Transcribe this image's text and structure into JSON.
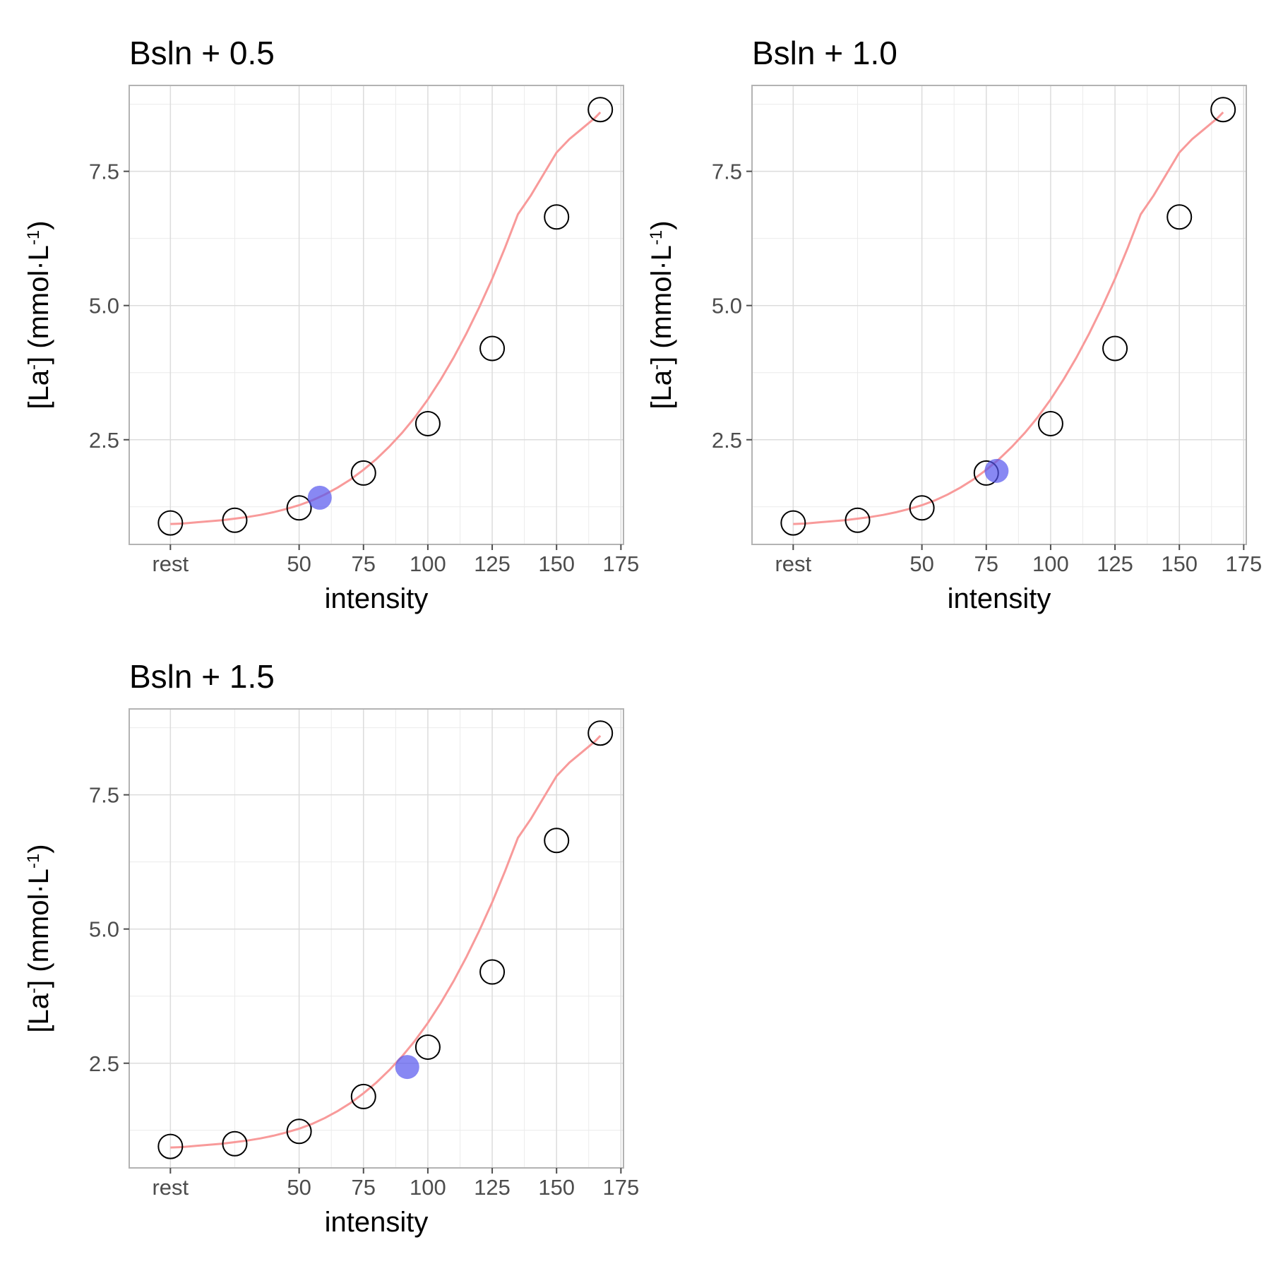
{
  "chart_data": [
    {
      "type": "scatter",
      "title": "Bsln + 0.5",
      "xlabel": "intensity",
      "ylabel": {
        "pre": "[La",
        "sup1": "-",
        "mid": "] (mmol·L",
        "sup2": "-1",
        "post": ")"
      },
      "x_ticks": [
        "rest",
        "50",
        "75",
        "100",
        "125",
        "150",
        "175"
      ],
      "x_tick_values": [
        0,
        50,
        75,
        100,
        125,
        150,
        175
      ],
      "y_ticks": [
        "2.5",
        "5.0",
        "7.5"
      ],
      "y_tick_values": [
        2.5,
        5.0,
        7.5
      ],
      "xlim": [
        -16,
        176
      ],
      "ylim": [
        0.55,
        9.1
      ],
      "grid": true,
      "points": {
        "x": [
          0,
          25,
          50,
          75,
          100,
          125,
          150,
          167
        ],
        "y": [
          0.95,
          1.0,
          1.23,
          1.88,
          2.8,
          4.2,
          6.65,
          8.65
        ]
      },
      "curve_color": "#f89a9a",
      "curve_x": [
        0,
        5,
        10,
        15,
        20,
        25,
        30,
        35,
        40,
        45,
        50,
        55,
        60,
        65,
        70,
        75,
        80,
        85,
        90,
        95,
        100,
        105,
        110,
        115,
        120,
        125,
        130,
        135,
        140,
        145,
        150,
        155,
        160,
        165,
        167
      ],
      "curve_y": [
        0.93,
        0.94,
        0.96,
        0.98,
        1.0,
        1.03,
        1.06,
        1.1,
        1.15,
        1.21,
        1.28,
        1.37,
        1.48,
        1.61,
        1.76,
        1.94,
        2.14,
        2.37,
        2.63,
        2.92,
        3.25,
        3.62,
        4.03,
        4.48,
        4.97,
        5.5,
        6.08,
        6.7,
        7.05,
        7.45,
        7.85,
        8.1,
        8.3,
        8.5,
        8.6
      ],
      "threshold": {
        "x": 58,
        "y": 1.42,
        "color": "#5555ee"
      }
    },
    {
      "type": "scatter",
      "title": "Bsln + 1.0",
      "xlabel": "intensity",
      "ylabel": {
        "pre": "[La",
        "sup1": "-",
        "mid": "] (mmol·L",
        "sup2": "-1",
        "post": ")"
      },
      "x_ticks": [
        "rest",
        "50",
        "75",
        "100",
        "125",
        "150",
        "175"
      ],
      "x_tick_values": [
        0,
        50,
        75,
        100,
        125,
        150,
        175
      ],
      "y_ticks": [
        "2.5",
        "5.0",
        "7.5"
      ],
      "y_tick_values": [
        2.5,
        5.0,
        7.5
      ],
      "xlim": [
        -16,
        176
      ],
      "ylim": [
        0.55,
        9.1
      ],
      "grid": true,
      "points": {
        "x": [
          0,
          25,
          50,
          75,
          100,
          125,
          150,
          167
        ],
        "y": [
          0.95,
          1.0,
          1.23,
          1.88,
          2.8,
          4.2,
          6.65,
          8.65
        ]
      },
      "curve_color": "#f89a9a",
      "curve_x": [
        0,
        5,
        10,
        15,
        20,
        25,
        30,
        35,
        40,
        45,
        50,
        55,
        60,
        65,
        70,
        75,
        80,
        85,
        90,
        95,
        100,
        105,
        110,
        115,
        120,
        125,
        130,
        135,
        140,
        145,
        150,
        155,
        160,
        165,
        167
      ],
      "curve_y": [
        0.93,
        0.94,
        0.96,
        0.98,
        1.0,
        1.03,
        1.06,
        1.1,
        1.15,
        1.21,
        1.28,
        1.37,
        1.48,
        1.61,
        1.76,
        1.94,
        2.14,
        2.37,
        2.63,
        2.92,
        3.25,
        3.62,
        4.03,
        4.48,
        4.97,
        5.5,
        6.08,
        6.7,
        7.05,
        7.45,
        7.85,
        8.1,
        8.3,
        8.5,
        8.6
      ],
      "threshold": {
        "x": 79,
        "y": 1.92,
        "color": "#5555ee"
      }
    },
    {
      "type": "scatter",
      "title": "Bsln + 1.5",
      "xlabel": "intensity",
      "ylabel": {
        "pre": "[La",
        "sup1": "-",
        "mid": "] (mmol·L",
        "sup2": "-1",
        "post": ")"
      },
      "x_ticks": [
        "rest",
        "50",
        "75",
        "100",
        "125",
        "150",
        "175"
      ],
      "x_tick_values": [
        0,
        50,
        75,
        100,
        125,
        150,
        175
      ],
      "y_ticks": [
        "2.5",
        "5.0",
        "7.5"
      ],
      "y_tick_values": [
        2.5,
        5.0,
        7.5
      ],
      "xlim": [
        -16,
        176
      ],
      "ylim": [
        0.55,
        9.1
      ],
      "grid": true,
      "points": {
        "x": [
          0,
          25,
          50,
          75,
          100,
          125,
          150,
          167
        ],
        "y": [
          0.95,
          1.0,
          1.23,
          1.88,
          2.8,
          4.2,
          6.65,
          8.65
        ]
      },
      "curve_color": "#f89a9a",
      "curve_x": [
        0,
        5,
        10,
        15,
        20,
        25,
        30,
        35,
        40,
        45,
        50,
        55,
        60,
        65,
        70,
        75,
        80,
        85,
        90,
        95,
        100,
        105,
        110,
        115,
        120,
        125,
        130,
        135,
        140,
        145,
        150,
        155,
        160,
        165,
        167
      ],
      "curve_y": [
        0.93,
        0.94,
        0.96,
        0.98,
        1.0,
        1.03,
        1.06,
        1.1,
        1.15,
        1.21,
        1.28,
        1.37,
        1.48,
        1.61,
        1.76,
        1.94,
        2.14,
        2.37,
        2.63,
        2.92,
        3.25,
        3.62,
        4.03,
        4.48,
        4.97,
        5.5,
        6.08,
        6.7,
        7.05,
        7.45,
        7.85,
        8.1,
        8.3,
        8.5,
        8.6
      ],
      "threshold": {
        "x": 92,
        "y": 2.43,
        "color": "#5555ee"
      }
    }
  ]
}
